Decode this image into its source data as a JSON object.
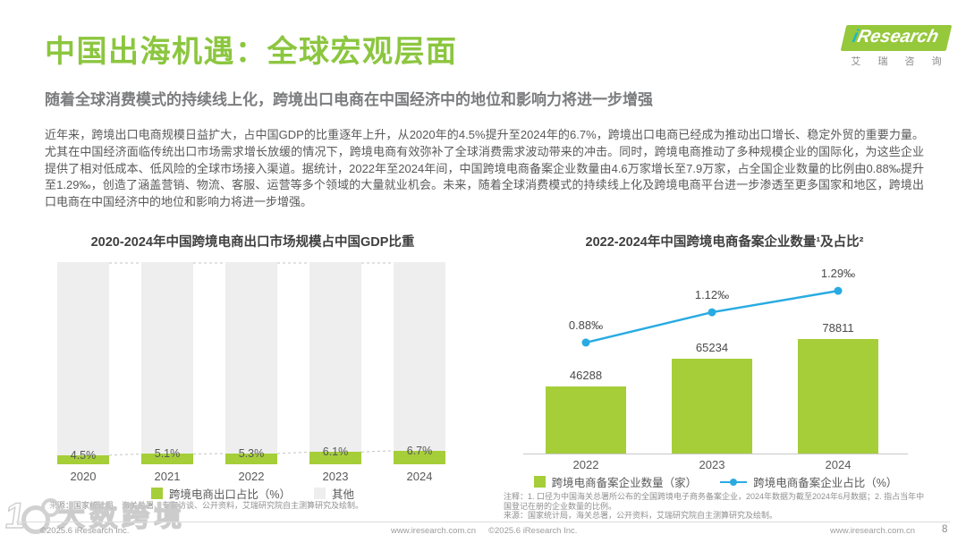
{
  "header": {
    "title": "中国出海机遇：全球宏观层面",
    "subtitle": "随着全球消费模式的持续线上化，跨境出口电商在中国经济中的地位和影响力将进一步增强"
  },
  "logo": {
    "i": "i",
    "text": "Research",
    "subtext": "艾 瑞 咨 询"
  },
  "body": {
    "paragraph": "近年来，跨境出口电商规模日益扩大，占中国GDP的比重逐年上升，从2020年的4.5%提升至2024年的6.7%，跨境出口电商已经成为推动出口增长、稳定外贸的重要力量。尤其在中国经济面临传统出口市场需求增长放缓的情况下，跨境电商有效弥补了全球消费需求波动带来的冲击。同时，跨境电商推动了多种规模企业的国际化，为这些企业提供了相对低成本、低风险的全球市场接入渠道。据统计，2022年至2024年间，中国跨境电商备案企业数量由4.6万家增长至7.9万家，占全国企业数量的比例由0.88‰提升至1.29‰，创造了涵盖营销、物流、客服、运营等多个领域的大量就业机会。未来，随着全球消费模式的持续线上化及跨境电商平台进一步渗透至更多国家和地区，跨境出口电商在中国经济中的地位和影响力将进一步增强。"
  },
  "colors": {
    "brand_green": "#8CC63F",
    "bar_green": "#A5CE39",
    "bar_gray": "#EEEEEE",
    "line_blue": "#29ABE2"
  },
  "chart_data": [
    {
      "type": "bar",
      "stacked": true,
      "title": "2020-2024年中国跨境电商出口市场规模占中国GDP比重",
      "categories": [
        "2020",
        "2021",
        "2022",
        "2023",
        "2024"
      ],
      "series": [
        {
          "name": "跨境电商出口占比（%）",
          "values": [
            4.5,
            5.1,
            5.3,
            6.1,
            6.7
          ],
          "labels": [
            "4.5%",
            "5.1%",
            "5.3%",
            "6.1%",
            "6.7%"
          ],
          "color": "#A5CE39"
        },
        {
          "name": "其他",
          "values": [
            95.5,
            94.9,
            94.7,
            93.9,
            93.3
          ],
          "color": "#EEEEEE"
        }
      ],
      "ylim": [
        0,
        100
      ],
      "grid": false,
      "legend_position": "bottom"
    },
    {
      "type": "bar",
      "combo": "bar+line",
      "title": "2022-2024年中国跨境电商备案企业数量¹及占比²",
      "categories": [
        "2022",
        "2023",
        "2024"
      ],
      "series": [
        {
          "type": "bar",
          "name": "跨境电商备案企业数量（家）",
          "values": [
            46288,
            65234,
            78811
          ],
          "labels": [
            "46288",
            "65234",
            "78811"
          ],
          "color": "#A5CE39"
        },
        {
          "type": "line",
          "name": "跨境电商备案企业占比（%）",
          "values": [
            0.88,
            1.12,
            1.29
          ],
          "labels": [
            "0.88‰",
            "1.12‰",
            "1.29‰"
          ],
          "color": "#29ABE2"
        }
      ],
      "grid": false,
      "legend_position": "bottom"
    }
  ],
  "charts_meta": {
    "left_source": "来源：国家统计局、海关总署、专家访谈、公开资料，艾瑞研究院自主测算研究及绘制。",
    "right_note": "注释：1. 口径为中国海关总署所公布的全国跨境电子商务备案企业，2024年数据为截至2024年6月数据；2. 指占当年中国登记在册的企业数量的比例。",
    "right_source": "来源：国家统计局，海关总署，公开资料，艾瑞研究院自主测算研究及绘制。"
  },
  "footer": {
    "left_copyright": "©2025.6 iResearch Inc.",
    "left_url": "www.iresearch.com.cn",
    "right_copyright": "©2025.6 iResearch Inc.",
    "right_url": "www.iresearch.com.cn",
    "page_number": "8"
  },
  "watermark": {
    "text": "大数跨境"
  }
}
